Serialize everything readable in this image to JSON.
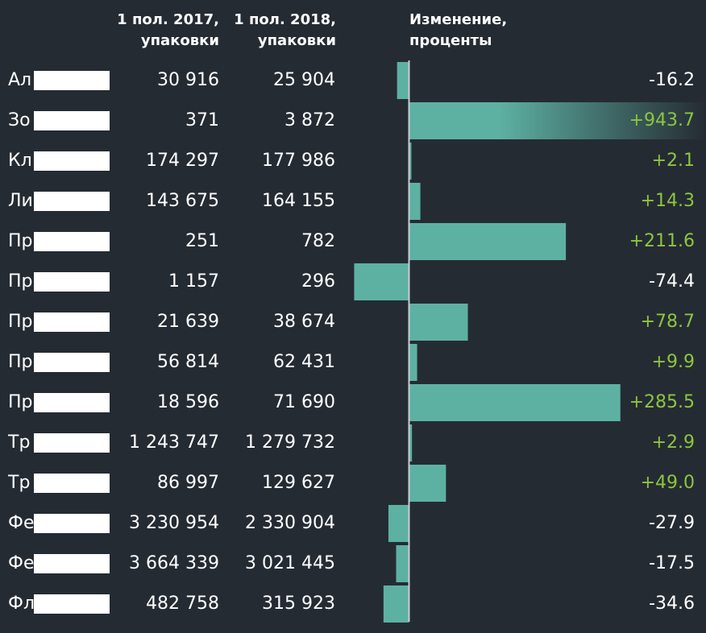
{
  "headers": {
    "col_2017": "1 пол. 2017,\nупаковки",
    "col_2018": "1 пол. 2018,\nупаковки",
    "col_change": "Изменение,\nпроценты"
  },
  "colors": {
    "background": "#252b33",
    "bar": "#5db1a3",
    "positive_text": "#8cc63f",
    "negative_text": "#ffffff",
    "axis": "#c8cdd2"
  },
  "chart_data": {
    "type": "bar",
    "orientation": "horizontal",
    "title": "",
    "categories": [
      "Ал",
      "Зо",
      "Кл",
      "Ли",
      "Пр",
      "Пр",
      "Пр",
      "Пр",
      "Пр",
      "Тр",
      "Тр",
      "Фе",
      "Фе",
      "Фл"
    ],
    "values_2017": [
      "30 916",
      "371",
      "174 297",
      "143 675",
      "251",
      "1 157",
      "21 639",
      "56 814",
      "18 596",
      "1 243 747",
      "86 997",
      "3 230 954",
      "3 664 339",
      "482 758"
    ],
    "values_2018": [
      "25 904",
      "3 872",
      "177 986",
      "164 155",
      "782",
      "296",
      "38 674",
      "62 431",
      "71 690",
      "1 279 732",
      "129 627",
      "2 330 904",
      "3 021 445",
      "315 923"
    ],
    "change_labels": [
      "-16.2",
      "+943.7",
      "+2.1",
      "+14.3",
      "+211.6",
      "-74.4",
      "+78.7",
      "+9.9",
      "+285.5",
      "+2.9",
      "+49.0",
      "-27.9",
      "-17.5",
      "-34.6"
    ],
    "values": [
      -16.2,
      943.7,
      2.1,
      14.3,
      211.6,
      -74.4,
      78.7,
      9.9,
      285.5,
      2.9,
      49.0,
      -27.9,
      -17.5,
      -34.6
    ],
    "series": [
      {
        "values": [
          -16.2,
          943.7,
          2.1,
          14.3,
          211.6,
          -74.4,
          78.7,
          9.9,
          285.5,
          2.9,
          49.0,
          -27.9,
          -17.5,
          -34.6
        ]
      }
    ],
    "grid": false,
    "legend": "none"
  }
}
